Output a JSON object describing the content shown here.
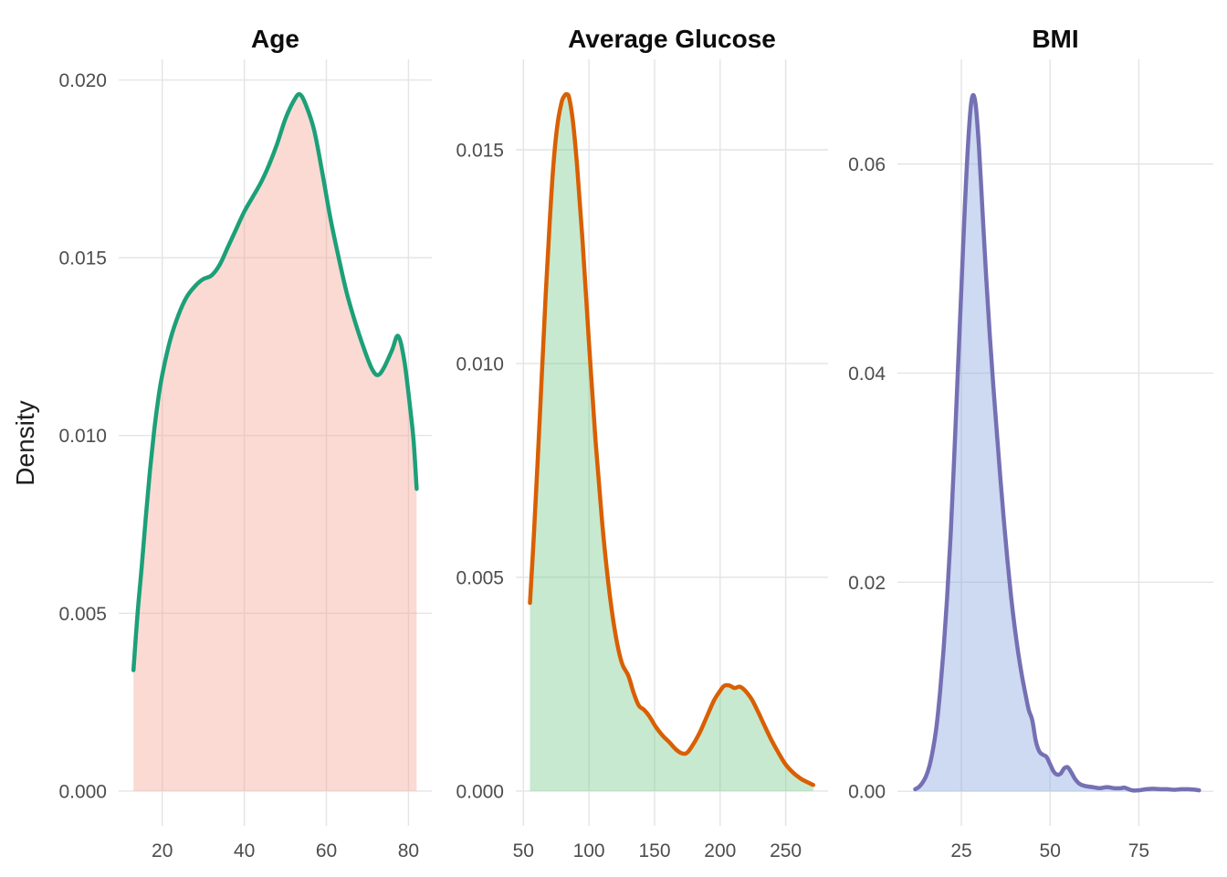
{
  "chart_data": {
    "type": "area",
    "subtype": "kernel-density",
    "ylabel": "Density",
    "grid": "major-only",
    "legend": "none",
    "background": "#FFFFFF",
    "grid_color": "#E4E4E4",
    "tick_label_color": "#4D4D4D",
    "title_color": "#0D0D0D",
    "axis_title_color": "#1F1F1F",
    "panels": [
      {
        "title": "Age",
        "line_color": "#1CA078",
        "fill_color": "#F5A294",
        "fill_opacity": 0.4,
        "xlim": [
          9.4,
          85.7
        ],
        "ylim": [
          -0.00098,
          0.02058
        ],
        "x_ticks": [
          [
            20,
            "20"
          ],
          [
            40,
            "40"
          ],
          [
            60,
            "60"
          ],
          [
            80,
            "80"
          ]
        ],
        "y_ticks": [
          [
            0,
            "0.000"
          ],
          [
            0.005,
            "0.005"
          ],
          [
            0.01,
            "0.010"
          ],
          [
            0.015,
            "0.015"
          ],
          [
            0.02,
            "0.020"
          ]
        ],
        "points": [
          [
            13,
            0.0034
          ],
          [
            14,
            0.005
          ],
          [
            15,
            0.0063
          ],
          [
            16,
            0.0077
          ],
          [
            17,
            0.009
          ],
          [
            18,
            0.0101
          ],
          [
            19,
            0.011
          ],
          [
            20,
            0.0117
          ],
          [
            22,
            0.0127
          ],
          [
            24,
            0.0134
          ],
          [
            26,
            0.0139
          ],
          [
            28,
            0.0142
          ],
          [
            30,
            0.0144
          ],
          [
            32,
            0.0145
          ],
          [
            34,
            0.0148
          ],
          [
            36,
            0.0153
          ],
          [
            38,
            0.0158
          ],
          [
            40,
            0.0163
          ],
          [
            42,
            0.0167
          ],
          [
            44,
            0.0171
          ],
          [
            46,
            0.0176
          ],
          [
            48,
            0.0182
          ],
          [
            50,
            0.0189
          ],
          [
            52,
            0.0194
          ],
          [
            53.5,
            0.0196
          ],
          [
            55,
            0.0193
          ],
          [
            57,
            0.0186
          ],
          [
            59,
            0.0174
          ],
          [
            61,
            0.0161
          ],
          [
            63,
            0.015
          ],
          [
            65,
            0.014
          ],
          [
            67,
            0.0132
          ],
          [
            69,
            0.0125
          ],
          [
            71,
            0.0119
          ],
          [
            72.5,
            0.0117
          ],
          [
            74,
            0.0119
          ],
          [
            76,
            0.0124
          ],
          [
            77.5,
            0.0128
          ],
          [
            79,
            0.0121
          ],
          [
            80.5,
            0.0107
          ],
          [
            81.3,
            0.0098
          ],
          [
            82,
            0.0085
          ]
        ]
      },
      {
        "title": "Average Glucose",
        "line_color": "#D95F02",
        "fill_color": "#73C887",
        "fill_opacity": 0.4,
        "xlim": [
          44.2,
          282.3
        ],
        "ylim": [
          -0.000815,
          0.017115
        ],
        "x_ticks": [
          [
            50,
            "50"
          ],
          [
            100,
            "100"
          ],
          [
            150,
            "150"
          ],
          [
            200,
            "200"
          ],
          [
            250,
            "250"
          ]
        ],
        "y_ticks": [
          [
            0,
            "0.000"
          ],
          [
            0.005,
            "0.005"
          ],
          [
            0.01,
            "0.010"
          ],
          [
            0.015,
            "0.015"
          ]
        ],
        "points": [
          [
            55,
            0.0044
          ],
          [
            58,
            0.006
          ],
          [
            61,
            0.0078
          ],
          [
            64,
            0.0097
          ],
          [
            67,
            0.0116
          ],
          [
            70,
            0.0133
          ],
          [
            73,
            0.0147
          ],
          [
            76,
            0.0156
          ],
          [
            79,
            0.0161
          ],
          [
            81,
            0.01625
          ],
          [
            83,
            0.0163
          ],
          [
            85,
            0.0162
          ],
          [
            88,
            0.0156
          ],
          [
            91,
            0.0146
          ],
          [
            95,
            0.0129
          ],
          [
            100,
            0.0105
          ],
          [
            105,
            0.0082
          ],
          [
            110,
            0.0063
          ],
          [
            115,
            0.0048
          ],
          [
            120,
            0.0037
          ],
          [
            125,
            0.003
          ],
          [
            130,
            0.0027
          ],
          [
            134,
            0.0023
          ],
          [
            138,
            0.002
          ],
          [
            142,
            0.0019
          ],
          [
            146,
            0.00175
          ],
          [
            151,
            0.0015
          ],
          [
            156,
            0.0013
          ],
          [
            161,
            0.00115
          ],
          [
            166,
            0.00098
          ],
          [
            171,
            0.00088
          ],
          [
            175,
            0.0009
          ],
          [
            180,
            0.00112
          ],
          [
            185,
            0.0014
          ],
          [
            190,
            0.00175
          ],
          [
            195,
            0.0021
          ],
          [
            199,
            0.0023
          ],
          [
            203,
            0.00246
          ],
          [
            207,
            0.00247
          ],
          [
            211,
            0.00241
          ],
          [
            215,
            0.00244
          ],
          [
            219,
            0.00235
          ],
          [
            224,
            0.00215
          ],
          [
            229,
            0.00185
          ],
          [
            234,
            0.00152
          ],
          [
            239,
            0.0012
          ],
          [
            244,
            0.00092
          ],
          [
            250,
            0.00062
          ],
          [
            256,
            0.00042
          ],
          [
            262,
            0.00028
          ],
          [
            267,
            0.0002
          ],
          [
            271,
            0.00014
          ]
        ]
      },
      {
        "title": "BMI",
        "line_color": "#7570B3",
        "fill_color": "#82A3DF",
        "fill_opacity": 0.4,
        "xlim": [
          7.0,
          96.0
        ],
        "ylim": [
          -0.0033,
          0.07
        ],
        "x_ticks": [
          [
            25,
            "25"
          ],
          [
            50,
            "50"
          ],
          [
            75,
            "75"
          ]
        ],
        "y_ticks": [
          [
            0,
            "0.00"
          ],
          [
            0.02,
            "0.02"
          ],
          [
            0.04,
            "0.04"
          ],
          [
            0.06,
            "0.06"
          ]
        ],
        "points": [
          [
            12,
            0.0002
          ],
          [
            13,
            0.0004
          ],
          [
            14,
            0.0008
          ],
          [
            15,
            0.0014
          ],
          [
            16,
            0.0024
          ],
          [
            17,
            0.004
          ],
          [
            18,
            0.0062
          ],
          [
            19,
            0.0095
          ],
          [
            20,
            0.0135
          ],
          [
            21,
            0.0185
          ],
          [
            22,
            0.0245
          ],
          [
            23,
            0.032
          ],
          [
            24,
            0.04
          ],
          [
            25,
            0.048
          ],
          [
            26,
            0.056
          ],
          [
            27,
            0.0625
          ],
          [
            28,
            0.0663
          ],
          [
            29,
            0.0658
          ],
          [
            30,
            0.0615
          ],
          [
            31,
            0.0553
          ],
          [
            32,
            0.0492
          ],
          [
            33,
            0.0437
          ],
          [
            34,
            0.0388
          ],
          [
            35,
            0.0343
          ],
          [
            36,
            0.03
          ],
          [
            37,
            0.0259
          ],
          [
            38,
            0.0221
          ],
          [
            39,
            0.0187
          ],
          [
            40,
            0.0158
          ],
          [
            41,
            0.0133
          ],
          [
            42,
            0.0112
          ],
          [
            43,
            0.0094
          ],
          [
            44,
            0.0078
          ],
          [
            45,
            0.0068
          ],
          [
            46,
            0.0048
          ],
          [
            47,
            0.0038
          ],
          [
            48,
            0.0035
          ],
          [
            49,
            0.0033
          ],
          [
            50,
            0.0026
          ],
          [
            51,
            0.0019
          ],
          [
            52,
            0.0016
          ],
          [
            53,
            0.0017
          ],
          [
            54,
            0.0022
          ],
          [
            55,
            0.0023
          ],
          [
            56,
            0.0018
          ],
          [
            57,
            0.0012
          ],
          [
            58,
            0.0008
          ],
          [
            59,
            0.0006
          ],
          [
            60,
            0.0005
          ],
          [
            62,
            0.0004
          ],
          [
            64,
            0.0003
          ],
          [
            66,
            0.0004
          ],
          [
            68,
            0.0003
          ],
          [
            70,
            0.0003
          ],
          [
            71,
            0.00035
          ],
          [
            73,
            0.0001
          ],
          [
            75,
            0.0001
          ],
          [
            77,
            0.0002
          ],
          [
            79,
            0.00025
          ],
          [
            81,
            0.0002
          ],
          [
            83,
            0.0002
          ],
          [
            85,
            0.00015
          ],
          [
            87,
            0.0002
          ],
          [
            89,
            0.0002
          ],
          [
            91,
            0.00015
          ],
          [
            92,
            0.0001
          ]
        ]
      }
    ]
  }
}
